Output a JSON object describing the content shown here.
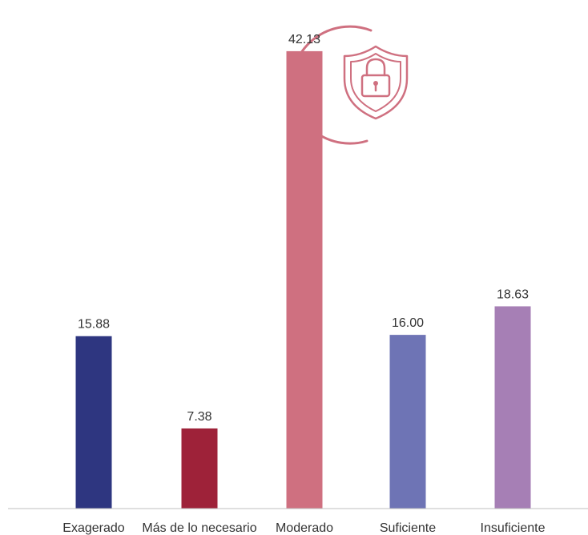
{
  "chart_data": {
    "type": "bar",
    "categories": [
      "Exagerado",
      "Más de lo necesario",
      "Moderado",
      "Suficiente",
      "Insuficiente"
    ],
    "values": [
      15.88,
      7.38,
      42.13,
      16.0,
      18.63
    ],
    "data_labels": [
      "15.88",
      "7.38",
      "42.13",
      "16.00",
      "18.63"
    ],
    "colors": [
      "#2e3680",
      "#9e2239",
      "#cf7080",
      "#6e74b5",
      "#a67fb5"
    ],
    "ylim": [
      0,
      45
    ],
    "grid": false,
    "legend": "none"
  },
  "decoration": {
    "icon": "shield-lock-icon",
    "color": "#cf7080"
  }
}
